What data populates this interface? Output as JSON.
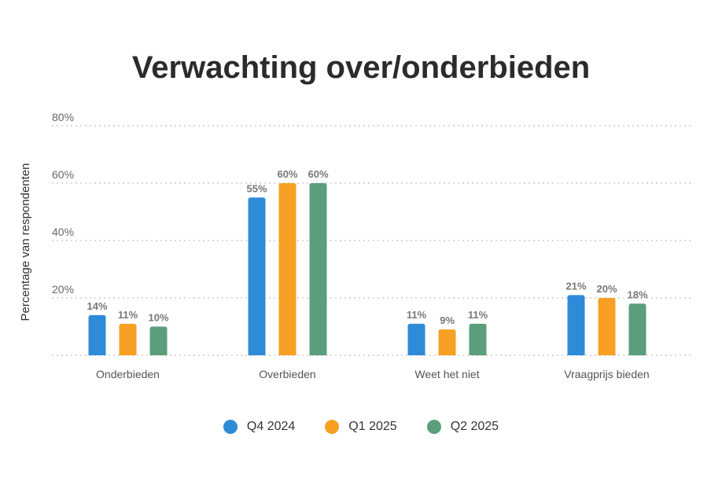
{
  "chart_data": {
    "type": "bar",
    "title": "Verwachting over/onderbieden",
    "ylabel": "Percentage van respondenten",
    "xlabel": "",
    "ylim": [
      0,
      80
    ],
    "yticks": [
      20,
      40,
      60,
      80
    ],
    "ytick_labels": [
      "20%",
      "40%",
      "60%",
      "80%"
    ],
    "grid": true,
    "legend_position": "bottom",
    "categories": [
      "Onderbieden",
      "Overbieden",
      "Weet het niet",
      "Vraagprijs bieden"
    ],
    "series": [
      {
        "name": "Q4 2024",
        "color": "#2e8bd8",
        "values": [
          14,
          55,
          11,
          21
        ],
        "labels": [
          "14%",
          "55%",
          "11%",
          "21%"
        ]
      },
      {
        "name": "Q1 2025",
        "color": "#f7a023",
        "values": [
          11,
          60,
          9,
          20
        ],
        "labels": [
          "11%",
          "60%",
          "9%",
          "20%"
        ]
      },
      {
        "name": "Q2 2025",
        "color": "#5a9e7c",
        "values": [
          10,
          60,
          11,
          18
        ],
        "labels": [
          "10%",
          "60%",
          "11%",
          "18%"
        ]
      }
    ]
  }
}
